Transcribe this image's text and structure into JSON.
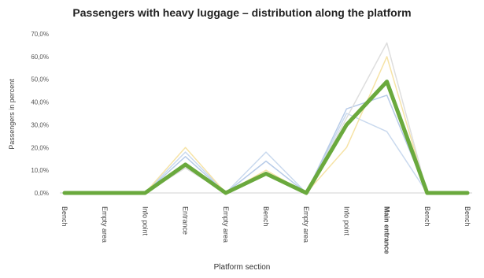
{
  "chart_data": {
    "type": "line",
    "title": "Passengers with heavy luggage – distribution along the platform",
    "xlabel": "Platform section",
    "ylabel": "Passengers in percent",
    "ylim": [
      0,
      70
    ],
    "yticks": [
      "0,0%",
      "10,0%",
      "20,0%",
      "30,0%",
      "40,0%",
      "50,0%",
      "60,0%",
      "70,0%"
    ],
    "categories": [
      "Bench",
      "Empty area",
      "Info point",
      "Entrance",
      "Empty area",
      "Bench",
      "Empty area",
      "Info point",
      "Main entrance",
      "Bench",
      "Bench"
    ],
    "highlight_category": "Main entrance",
    "highlight_color": "#e8251f",
    "grid": false,
    "series": [
      {
        "values": [
          0,
          0,
          0,
          18,
          0,
          18,
          0,
          35,
          27,
          0,
          0
        ],
        "color": "#c9d9ee",
        "width": 1.5
      },
      {
        "values": [
          0,
          0,
          0,
          20,
          0,
          10,
          0,
          20,
          60,
          0,
          0
        ],
        "color": "#f6e3a6",
        "width": 1.5
      },
      {
        "values": [
          0,
          0,
          0,
          16,
          0,
          14,
          0,
          37,
          43,
          0,
          0
        ],
        "color": "#b7cbe8",
        "width": 1.5
      },
      {
        "values": [
          0,
          0,
          0,
          11,
          0,
          9,
          0,
          33,
          66,
          0,
          0
        ],
        "color": "#dedede",
        "width": 1.5
      },
      {
        "values": [
          0,
          0,
          0,
          12.5,
          0,
          8.5,
          0,
          30,
          49,
          0,
          0
        ],
        "color": "#6aa93d",
        "width": 5
      }
    ]
  }
}
